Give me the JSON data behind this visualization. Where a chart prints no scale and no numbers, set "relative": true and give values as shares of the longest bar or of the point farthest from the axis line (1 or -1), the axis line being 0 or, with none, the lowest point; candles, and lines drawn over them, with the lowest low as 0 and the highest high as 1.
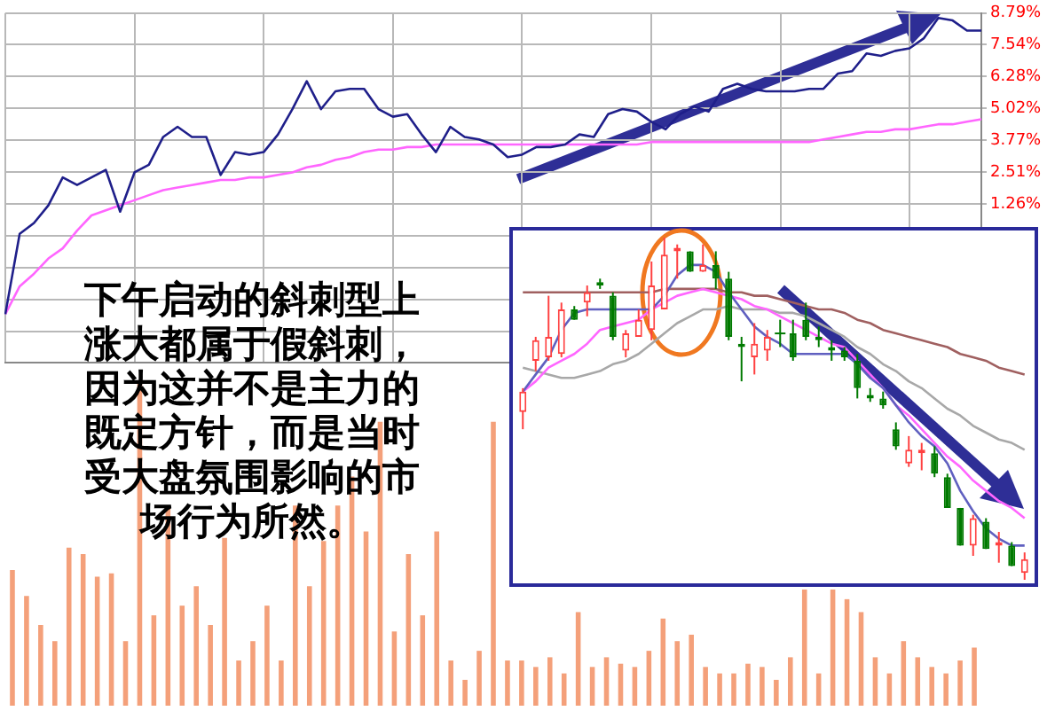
{
  "chart_data": [
    {
      "type": "line",
      "categories": [
        null,
        null,
        null,
        null,
        null,
        null,
        null,
        null,
        null,
        null,
        null,
        null,
        null,
        null,
        null,
        null,
        null,
        null,
        null,
        null,
        null,
        null,
        null,
        null,
        null,
        null,
        null,
        null,
        null,
        null,
        null,
        null,
        null,
        null,
        null,
        null,
        null,
        null,
        null,
        null,
        null,
        null,
        null,
        null,
        null,
        null,
        null,
        null,
        null,
        null,
        null,
        null,
        null,
        null,
        null,
        null,
        null,
        null,
        null,
        null,
        null,
        null,
        null,
        null,
        null,
        null,
        null,
        null,
        null
      ],
      "series": [
        {
          "color": "#1f1f8a",
          "values": [
            -3.1,
            0.07,
            0.5,
            1.2,
            2.3,
            2.0,
            2.3,
            2.6,
            0.95,
            2.5,
            2.8,
            3.9,
            4.3,
            3.9,
            3.9,
            2.4,
            3.3,
            3.2,
            3.3,
            4.0,
            5.0,
            6.1,
            5.0,
            5.7,
            5.8,
            5.8,
            5.0,
            4.7,
            4.8,
            4.0,
            3.3,
            4.3,
            3.9,
            3.8,
            3.6,
            3.1,
            3.2,
            3.5,
            3.5,
            3.6,
            4.0,
            3.9,
            4.8,
            5.0,
            4.9,
            4.5,
            4.2,
            4.8,
            5.1,
            4.9,
            5.8,
            6.0,
            5.8,
            5.7,
            5.7,
            5.7,
            5.8,
            5.8,
            6.4,
            6.5,
            7.2,
            7.1,
            7.3,
            7.4,
            7.8,
            8.6,
            8.5,
            8.1,
            8.1
          ]
        },
        {
          "color": "#ff66ff",
          "values": [
            -3.1,
            -2.0,
            -1.5,
            -0.9,
            -0.5,
            0.2,
            0.8,
            1.0,
            1.2,
            1.4,
            1.6,
            1.8,
            1.9,
            2.0,
            2.1,
            2.2,
            2.2,
            2.3,
            2.3,
            2.4,
            2.5,
            2.7,
            2.8,
            3.0,
            3.1,
            3.3,
            3.4,
            3.4,
            3.5,
            3.5,
            3.6,
            3.6,
            3.6,
            3.6,
            3.6,
            3.6,
            3.6,
            3.6,
            3.6,
            3.6,
            3.6,
            3.6,
            3.6,
            3.6,
            3.6,
            3.7,
            3.7,
            3.7,
            3.7,
            3.7,
            3.7,
            3.7,
            3.7,
            3.7,
            3.7,
            3.7,
            3.7,
            3.8,
            3.9,
            4.0,
            4.1,
            4.1,
            4.2,
            4.2,
            4.3,
            4.4,
            4.4,
            4.5,
            4.6
          ]
        }
      ],
      "ylim": [
        -5.02,
        8.79
      ],
      "yticks": [
        {
          "value": -5.02,
          "label": null
        },
        {
          "value": -3.77,
          "label": null
        },
        {
          "value": -2.51,
          "label": null
        },
        {
          "value": -1.26,
          "label": null
        },
        {
          "value": 0,
          "label": null
        },
        {
          "value": 1.26,
          "label": "1.26%"
        },
        {
          "value": 2.51,
          "label": "2.51%"
        },
        {
          "value": 3.77,
          "label": "3.77%"
        },
        {
          "value": 5.02,
          "label": "5.02%"
        },
        {
          "value": 6.28,
          "label": "6.28%"
        },
        {
          "value": 7.54,
          "label": "7.54%"
        },
        {
          "value": 8.79,
          "label": "8.79%"
        }
      ],
      "grid": true,
      "tick_labels": "y",
      "marker": "none",
      "annotations": [
        "下午启动的斜刺型上涨大都属于假斜刺，因为这并不是主力的既定方针，而是当时受大盘氛围影响的市场行为所然。"
      ]
    },
    {
      "type": "bar",
      "relative": true,
      "color": "#f4a07a",
      "categories": [
        null,
        null,
        null,
        null,
        null,
        null,
        null,
        null,
        null,
        null,
        null,
        null,
        null,
        null,
        null,
        null,
        null,
        null,
        null,
        null,
        null,
        null,
        null,
        null,
        null,
        null,
        null,
        null,
        null,
        null,
        null,
        null,
        null,
        null,
        null,
        null,
        null,
        null,
        null,
        null,
        null,
        null,
        null,
        null,
        null,
        null,
        null,
        null,
        null,
        null,
        null,
        null,
        null,
        null,
        null,
        null,
        null,
        null,
        null,
        null,
        null,
        null,
        null,
        null,
        null,
        null,
        null,
        null,
        null
      ],
      "values": [
        0.42,
        0.34,
        0.25,
        0.2,
        0.49,
        0.47,
        0.4,
        0.41,
        0.2,
        1,
        0.28,
        0.62,
        0.31,
        0.37,
        0.25,
        0.52,
        0.14,
        0.2,
        0.31,
        0.14,
        0.62,
        0.37,
        0.51,
        0.62,
        0.71,
        0.54,
        0.88,
        0.23,
        0.47,
        0.28,
        0.54,
        0.14,
        0.08,
        0.17,
        0.88,
        0.14,
        0.14,
        0.12,
        0.15,
        0.1,
        0.29,
        0.12,
        0.15,
        0.13,
        0.12,
        0.17,
        0.27,
        0.2,
        0.22,
        0.12,
        0.1,
        0.1,
        0.13,
        0.12,
        0.08,
        0.15,
        0.36,
        0.1,
        0.36,
        0.33,
        0.29,
        0.15,
        0.1,
        0.2,
        0.15,
        0.12,
        0.1,
        0.14,
        0.18
      ]
    },
    {
      "type": "candlestick",
      "relative": true,
      "categories": [
        null,
        null,
        null,
        null,
        null,
        null,
        null,
        null,
        null,
        null,
        null,
        null,
        null,
        null,
        null,
        null,
        null,
        null,
        null,
        null,
        null,
        null,
        null,
        null,
        null,
        null,
        null,
        null,
        null,
        null,
        null,
        null,
        null,
        null,
        null,
        null,
        null,
        null,
        null,
        null
      ],
      "ohlc": [
        [
          0.49,
          0.56,
          0.44,
          0.55
        ],
        [
          0.64,
          0.71,
          0.61,
          0.7
        ],
        [
          0.65,
          0.83,
          0.64,
          0.71
        ],
        [
          0.66,
          0.81,
          0.65,
          0.79
        ],
        [
          0.79,
          0.8,
          0.76,
          0.76
        ],
        [
          0.81,
          0.86,
          0.77,
          0.84
        ],
        [
          0.87,
          0.88,
          0.85,
          0.86
        ],
        [
          0.83,
          0.84,
          0.7,
          0.71
        ],
        [
          0.67,
          0.73,
          0.65,
          0.72
        ],
        [
          0.71,
          0.79,
          0.71,
          0.76
        ],
        [
          0.73,
          0.93,
          0.7,
          0.86
        ],
        [
          0.79,
          1,
          0.79,
          0.95
        ],
        [
          0.96,
          0.98,
          0.88,
          0.97
        ],
        [
          0.96,
          0.96,
          0.9,
          0.9
        ],
        [
          0.9,
          0.98,
          0.9,
          0.92
        ],
        [
          0.92,
          0.96,
          0.85,
          0.88
        ],
        [
          0.88,
          0.9,
          0.7,
          0.71
        ],
        [
          0.69,
          0.71,
          0.58,
          0.68
        ],
        [
          0.65,
          0.75,
          0.6,
          0.69
        ],
        [
          0.67,
          0.73,
          0.64,
          0.71
        ],
        [
          0.72,
          0.76,
          0.68,
          0.72
        ],
        [
          0.72,
          0.76,
          0.64,
          0.65
        ],
        [
          0.76,
          0.81,
          0.7,
          0.71
        ],
        [
          0.71,
          0.74,
          0.68,
          0.7
        ],
        [
          0.68,
          0.7,
          0.64,
          0.67
        ],
        [
          0.67,
          0.68,
          0.64,
          0.65
        ],
        [
          0.64,
          0.66,
          0.53,
          0.56
        ],
        [
          0.54,
          0.56,
          0.52,
          0.53
        ],
        [
          0.53,
          0.55,
          0.5,
          0.51
        ],
        [
          0.44,
          0.46,
          0.38,
          0.39
        ],
        [
          0.34,
          0.42,
          0.33,
          0.38
        ],
        [
          0.37,
          0.4,
          0.32,
          0.38
        ],
        [
          0.37,
          0.39,
          0.3,
          0.31
        ],
        [
          0.3,
          0.31,
          0.21,
          0.21
        ],
        [
          0.21,
          0.21,
          0.1,
          0.1
        ],
        [
          0.1,
          0.19,
          0.07,
          0.18
        ],
        [
          0.17,
          0.18,
          0.09,
          0.09
        ],
        [
          0.1,
          0.14,
          0.05,
          0.11
        ],
        [
          0.1,
          0.11,
          0.04,
          0.04
        ],
        [
          0.02,
          0.08,
          0,
          0.06
        ]
      ],
      "colors": [
        "#ff4040",
        "#ff4040",
        "#ff4040",
        "#ff4040",
        "#007a00",
        "#ff4040",
        "#007a00",
        "#007a00",
        "#ff4040",
        "#ff4040",
        "#ff4040",
        "#ff4040",
        "#ff4040",
        "#007a00",
        "#ff4040",
        "#007a00",
        "#007a00",
        "#007a00",
        "#ff4040",
        "#ff4040",
        "#007a00",
        "#007a00",
        "#007a00",
        "#007a00",
        "#007a00",
        "#007a00",
        "#007a00",
        "#007a00",
        "#007a00",
        "#007a00",
        "#ff4040",
        "#ff4040",
        "#007a00",
        "#007a00",
        "#007a00",
        "#ff4040",
        "#007a00",
        "#ff4040",
        "#007a00",
        "#ff4040"
      ],
      "series": [
        {
          "type": "line",
          "color": "#6060c0",
          "values": [
            0.55,
            0.6,
            0.65,
            0.73,
            0.78,
            0.79,
            0.79,
            0.79,
            0.79,
            0.79,
            0.79,
            0.83,
            0.89,
            0.92,
            0.92,
            0.9,
            0.84,
            0.79,
            0.74,
            0.71,
            0.69,
            0.66,
            0.66,
            0.66,
            0.66,
            0.66,
            0.63,
            0.59,
            0.56,
            0.51,
            0.46,
            0.42,
            0.39,
            0.34,
            0.26,
            0.2,
            0.15,
            0.12,
            0.1,
            0.1
          ]
        },
        {
          "type": "line",
          "color": "#ff66ff",
          "values": [
            0.55,
            0.58,
            0.62,
            0.64,
            0.66,
            0.69,
            0.73,
            0.74,
            0.75,
            0.76,
            0.79,
            0.81,
            0.83,
            0.84,
            0.85,
            0.84,
            0.83,
            0.82,
            0.8,
            0.79,
            0.77,
            0.75,
            0.73,
            0.71,
            0.69,
            0.68,
            0.64,
            0.6,
            0.56,
            0.51,
            0.48,
            0.44,
            0.4,
            0.36,
            0.33,
            0.29,
            0.26,
            0.23,
            0.21,
            0.18
          ]
        },
        {
          "type": "line",
          "color": "#a06060",
          "values": [
            0.84,
            0.84,
            0.84,
            0.84,
            0.84,
            0.84,
            0.84,
            0.84,
            0.84,
            0.84,
            0.84,
            0.85,
            0.85,
            0.85,
            0.85,
            0.85,
            0.84,
            0.84,
            0.83,
            0.83,
            0.82,
            0.81,
            0.8,
            0.79,
            0.79,
            0.78,
            0.76,
            0.75,
            0.73,
            0.72,
            0.71,
            0.7,
            0.69,
            0.68,
            0.66,
            0.65,
            0.64,
            0.62,
            0.61,
            0.6
          ]
        },
        {
          "type": "line",
          "color": "#a8a8a8",
          "values": [
            0.62,
            0.61,
            0.6,
            0.59,
            0.59,
            0.6,
            0.61,
            0.63,
            0.64,
            0.66,
            0.69,
            0.72,
            0.75,
            0.77,
            0.79,
            0.79,
            0.8,
            0.79,
            0.79,
            0.79,
            0.78,
            0.78,
            0.77,
            0.75,
            0.73,
            0.71,
            0.68,
            0.66,
            0.63,
            0.61,
            0.58,
            0.56,
            0.53,
            0.5,
            0.48,
            0.45,
            0.43,
            0.41,
            0.4,
            0.38
          ]
        }
      ],
      "marker": "none"
    }
  ]
}
